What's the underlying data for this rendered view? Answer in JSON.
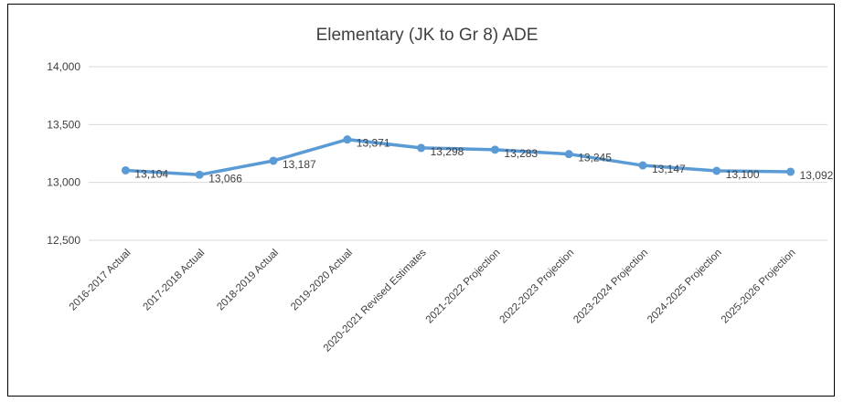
{
  "chart_data": {
    "type": "line",
    "title": "Elementary (JK to Gr 8) ADE",
    "categories": [
      "2016-2017 Actual",
      "2017-2018 Actual",
      "2018-2019 Actual",
      "2019-2020 Actual",
      "2020-2021 Revised Estimates",
      "2021-2022 Projection",
      "2022-2023 Projection",
      "2023-2024 Projection",
      "2024-2025 Projection",
      "2025-2026 Projection"
    ],
    "values": [
      13104,
      13066,
      13187,
      13371,
      13298,
      13283,
      13245,
      13147,
      13100,
      13092
    ],
    "data_labels": [
      "13,104",
      "13,066",
      "13,187",
      "13,371",
      "13,298",
      "13,283",
      "13,245",
      "13,147",
      "13,100",
      "13,092"
    ],
    "yticks": [
      "12,500",
      "13,000",
      "13,500",
      "14,000"
    ],
    "ytick_values": [
      12500,
      13000,
      13500,
      14000
    ],
    "ylim": [
      12500,
      14000
    ],
    "grid": true,
    "legend": "none",
    "line_color": "#5b9bd5",
    "xlabel": "",
    "ylabel": ""
  }
}
